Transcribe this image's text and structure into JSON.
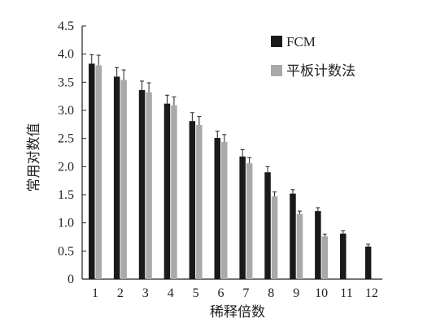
{
  "chart_data": {
    "type": "bar",
    "title": "",
    "xlabel": "稀释倍数",
    "ylabel": "常用对数值",
    "ylim": [
      0,
      4.5
    ],
    "yticks": [
      "0",
      "0.5",
      "1.0",
      "1.5",
      "2.0",
      "2.5",
      "3.0",
      "3.5",
      "4.0",
      "4.5"
    ],
    "categories": [
      "1",
      "2",
      "3",
      "4",
      "5",
      "6",
      "7",
      "8",
      "9",
      "10",
      "11",
      "12"
    ],
    "legend_position": "top-right",
    "grid": false,
    "series": [
      {
        "name": "FCM",
        "color": "#1a1a1a",
        "values": [
          3.83,
          3.6,
          3.36,
          3.12,
          2.81,
          2.51,
          2.18,
          1.9,
          1.52,
          1.21,
          0.81,
          0.58
        ],
        "errors": [
          0.16,
          0.16,
          0.16,
          0.15,
          0.15,
          0.12,
          0.12,
          0.1,
          0.07,
          0.06,
          0.05,
          0.04
        ]
      },
      {
        "name": "平板计数法",
        "color": "#a9a9a9",
        "values": [
          3.8,
          3.54,
          3.32,
          3.09,
          2.74,
          2.44,
          2.06,
          1.47,
          1.16,
          0.76,
          null,
          null
        ],
        "errors": [
          0.18,
          0.18,
          0.17,
          0.15,
          0.15,
          0.13,
          0.1,
          0.08,
          0.05,
          0.04,
          null,
          null
        ]
      }
    ]
  }
}
